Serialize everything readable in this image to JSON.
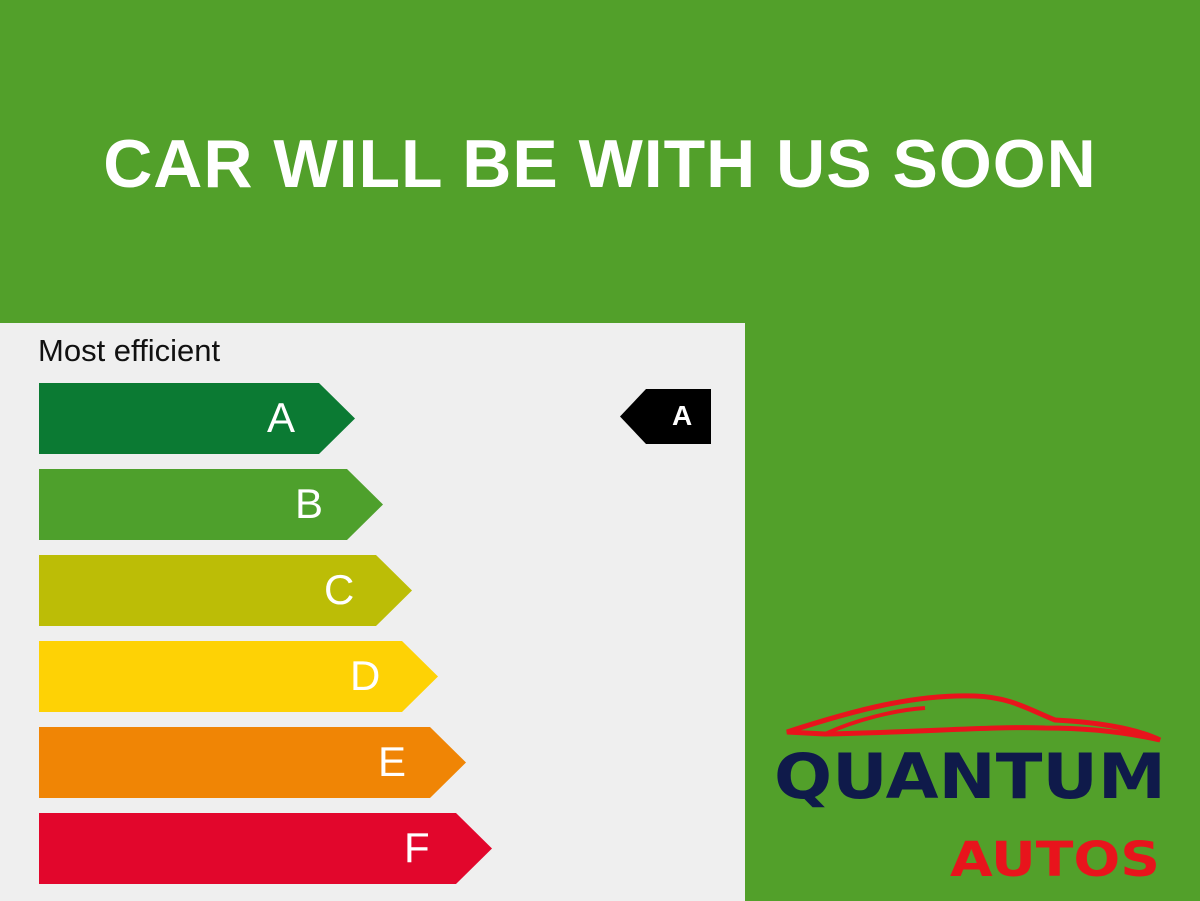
{
  "title": "CAR WILL BE WITH US SOON",
  "label": {
    "heading": "Most efficient",
    "rating": "A"
  },
  "bars": [
    {
      "letter": "A",
      "color": "#0b7a33"
    },
    {
      "letter": "B",
      "color": "#4ea02c"
    },
    {
      "letter": "C",
      "color": "#bcbd06"
    },
    {
      "letter": "D",
      "color": "#fed205"
    },
    {
      "letter": "E",
      "color": "#f08505"
    },
    {
      "letter": "F",
      "color": "#e2062c"
    }
  ],
  "logo": {
    "line1": "QUANTUM",
    "line2": "AUTOS",
    "navy": "#0f1a4a",
    "red": "#e8141c"
  }
}
